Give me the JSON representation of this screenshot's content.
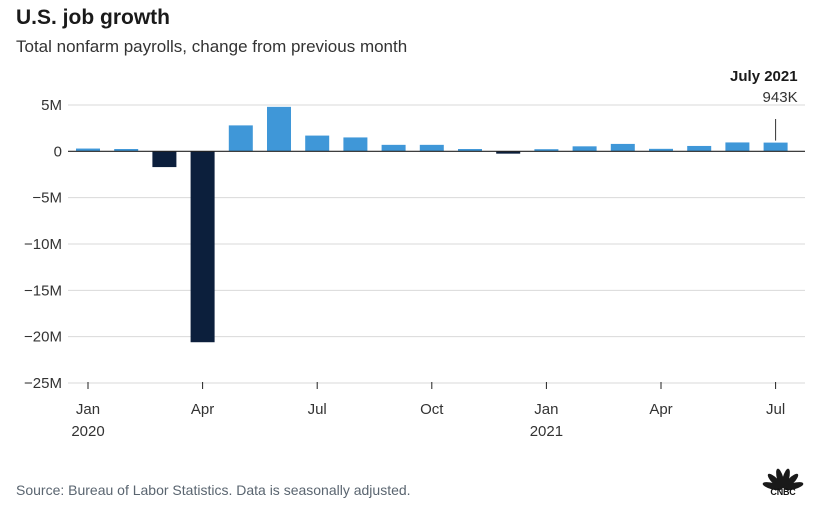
{
  "header": {
    "title": "U.S. job growth",
    "subtitle": "Total nonfarm payrolls, change from previous month"
  },
  "footer": {
    "source": "Source: Bureau of Labor Statistics. Data is seasonally adjusted.",
    "logo_text": "CNBC",
    "logo_icon": "peacock-icon"
  },
  "colors": {
    "positive": "#3f97d8",
    "negative": "#0c1f3c",
    "grid": "#d9d9d9",
    "zero_line": "#222222",
    "text": "#333333"
  },
  "chart_data": {
    "type": "bar",
    "title": "U.S. job growth",
    "subtitle": "Total nonfarm payrolls, change from previous month",
    "xlabel": "",
    "ylabel": "",
    "unit": "jobs",
    "ylim": [
      -25000000,
      5000000
    ],
    "yticks": [
      5000000,
      0,
      -5000000,
      -10000000,
      -15000000,
      -20000000,
      -25000000
    ],
    "ytick_labels": [
      "5M",
      "0",
      "−5M",
      "−10M",
      "−15M",
      "−20M",
      "−25M"
    ],
    "categories": [
      "Jan 2020",
      "Feb 2020",
      "Mar 2020",
      "Apr 2020",
      "May 2020",
      "Jun 2020",
      "Jul 2020",
      "Aug 2020",
      "Sep 2020",
      "Oct 2020",
      "Nov 2020",
      "Dec 2020",
      "Jan 2021",
      "Feb 2021",
      "Mar 2021",
      "Apr 2021",
      "May 2021",
      "Jun 2021",
      "Jul 2021"
    ],
    "values": [
      300000,
      250000,
      -1700000,
      -20600000,
      2800000,
      4800000,
      1700000,
      1500000,
      700000,
      700000,
      250000,
      -250000,
      230000,
      540000,
      800000,
      270000,
      580000,
      960000,
      943000
    ],
    "xticks": [
      {
        "index": 0,
        "label": "Jan",
        "sublabel": "2020"
      },
      {
        "index": 3,
        "label": "Apr",
        "sublabel": ""
      },
      {
        "index": 6,
        "label": "Jul",
        "sublabel": ""
      },
      {
        "index": 9,
        "label": "Oct",
        "sublabel": ""
      },
      {
        "index": 12,
        "label": "Jan",
        "sublabel": "2021"
      },
      {
        "index": 15,
        "label": "Apr",
        "sublabel": ""
      },
      {
        "index": 18,
        "label": "Jul",
        "sublabel": ""
      }
    ],
    "annotation": {
      "index": 18,
      "title": "July 2021",
      "value_label": "943K"
    },
    "grid": true,
    "legend": "none"
  }
}
